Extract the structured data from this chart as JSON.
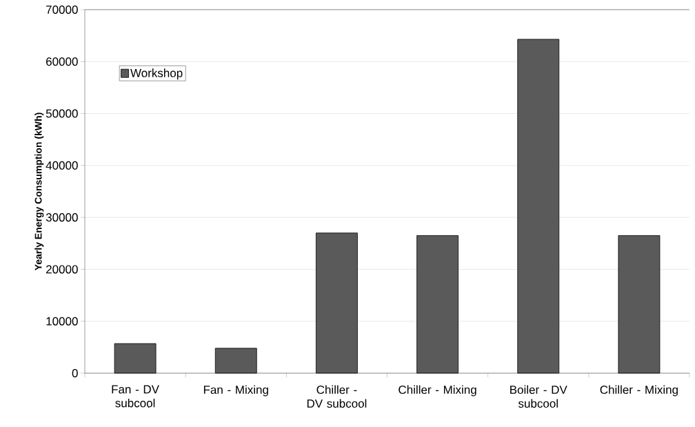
{
  "chart_data": {
    "type": "bar",
    "ylabel": "Yearly Energy Consumption (kWh)",
    "categories": [
      "Fan - DV subcool",
      "Fan - Mixing",
      "Chiller - DV subcool",
      "Chiller - Mixing",
      "Boiler - DV subcool",
      "Chiller - Mixing"
    ],
    "series": [
      {
        "name": "Workshop",
        "color": "#5a5a5a",
        "values": [
          5700,
          4800,
          27000,
          26500,
          64300,
          26500
        ]
      }
    ],
    "ylim": [
      0,
      70000
    ],
    "yticks": [
      0,
      10000,
      20000,
      30000,
      40000,
      50000,
      60000,
      70000
    ],
    "grid": "y",
    "legend": "top left"
  }
}
